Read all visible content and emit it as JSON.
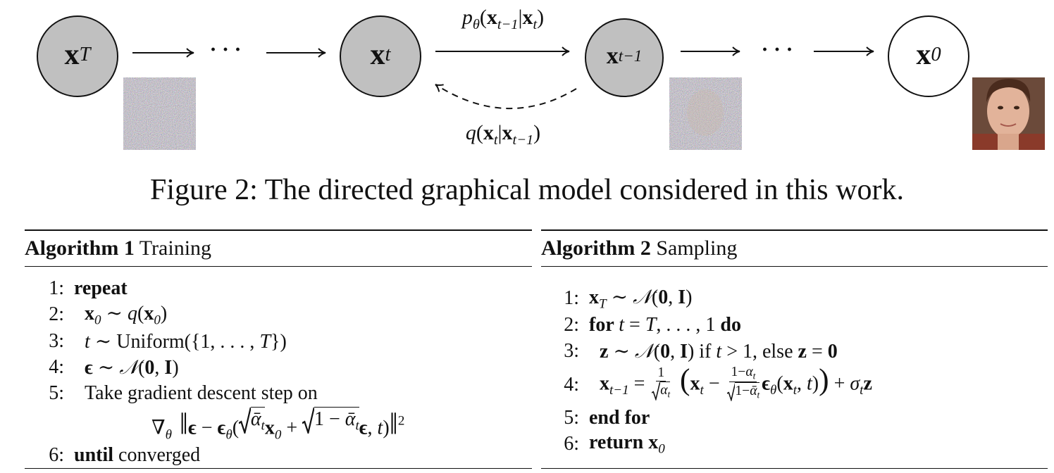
{
  "figure": {
    "nodes": [
      [
        {
          "b": "x"
        },
        {
          "sub": "T"
        }
      ],
      [
        {
          "b": "x"
        },
        {
          "sub": "t"
        }
      ],
      [
        {
          "b": "x"
        },
        {
          "sub": "t−1"
        }
      ],
      [
        {
          "b": "x"
        },
        {
          "sub": "0"
        }
      ]
    ],
    "dots": [
      "· · ·",
      "· · ·"
    ],
    "reverse_label": [
      {
        "i": "p"
      },
      {
        "sub": "θ"
      },
      {
        "r": "("
      },
      {
        "b": "x"
      },
      {
        "sub": "t−1"
      },
      {
        "r": "|"
      },
      {
        "b": "x"
      },
      {
        "sub": "t"
      },
      {
        "r": ")"
      }
    ],
    "forward_label": [
      {
        "i": "q"
      },
      {
        "r": "("
      },
      {
        "b": "x"
      },
      {
        "sub": "t"
      },
      {
        "r": "|"
      },
      {
        "b": "x"
      },
      {
        "sub": "t−1"
      },
      {
        "r": ")"
      }
    ],
    "caption": "Figure 2: The directed graphical model considered in this work."
  },
  "algorithms": [
    {
      "label": "Algorithm 1",
      "name": " Training",
      "lines": [
        {
          "num": "1:",
          "content": [
            {
              "b": "repeat"
            }
          ]
        },
        {
          "num": "2:",
          "content": [
            {
              "b": "x"
            },
            {
              "sub": "0"
            },
            {
              "r": " ∼ "
            },
            {
              "i": "q"
            },
            {
              "r": "("
            },
            {
              "b": "x"
            },
            {
              "sub": "0"
            },
            {
              "r": ")"
            }
          ]
        },
        {
          "num": "3:",
          "content": [
            {
              "i": "t"
            },
            {
              "r": " ∼ Uniform({1, . . . , "
            },
            {
              "i": "T"
            },
            {
              "r": "})"
            }
          ]
        },
        {
          "num": "4:",
          "content": [
            {
              "b": "ϵ"
            },
            {
              "r": " ∼ "
            },
            {
              "cal": "𝒩"
            },
            {
              "r": "("
            },
            {
              "b": "0"
            },
            {
              "r": ", "
            },
            {
              "b": "I"
            },
            {
              "r": ")"
            }
          ]
        },
        {
          "num": "5:",
          "content": [
            {
              "r": "Take gradient descent step on"
            }
          ]
        },
        {
          "content": [
            {
              "r": "∇"
            },
            {
              "sub": "θ"
            },
            {
              "big": " ‖"
            },
            {
              "b": "ϵ"
            },
            {
              "r": " − "
            },
            {
              "b": "ϵ"
            },
            {
              "sub": "θ"
            },
            {
              "r": "("
            },
            {
              "sqrt": [
                {
                  "i": "ᾱ"
                },
                {
                  "sub": "t"
                }
              ]
            },
            {
              "b": "x"
            },
            {
              "sub": "0"
            },
            {
              "r": " + "
            },
            {
              "sqrt": [
                {
                  "r": "1 − "
                },
                {
                  "i": "ᾱ"
                },
                {
                  "sub": "t"
                }
              ]
            },
            {
              "b": "ϵ"
            },
            {
              "r": ", "
            },
            {
              "i": "t"
            },
            {
              "r": ")"
            },
            {
              "big": "‖"
            },
            {
              "sup": "2"
            }
          ]
        },
        {
          "num": "6:",
          "content": [
            {
              "b": "until"
            },
            {
              "r": " converged"
            }
          ]
        }
      ]
    },
    {
      "label": "Algorithm 2",
      "name": " Sampling",
      "lines": [
        {
          "num": "1:",
          "content": [
            {
              "b": "x"
            },
            {
              "sub": "T"
            },
            {
              "r": " ∼ "
            },
            {
              "cal": "𝒩"
            },
            {
              "r": "("
            },
            {
              "b": "0"
            },
            {
              "r": ", "
            },
            {
              "b": "I"
            },
            {
              "r": ")"
            }
          ]
        },
        {
          "num": "2:",
          "content": [
            {
              "b": "for "
            },
            {
              "i": "t"
            },
            {
              "r": " = "
            },
            {
              "i": "T"
            },
            {
              "r": ", . . . , 1 "
            },
            {
              "b": "do"
            }
          ]
        },
        {
          "num": "3:",
          "content": [
            {
              "b": "z"
            },
            {
              "r": " ∼ "
            },
            {
              "cal": "𝒩"
            },
            {
              "r": "("
            },
            {
              "b": "0"
            },
            {
              "r": ", "
            },
            {
              "b": "I"
            },
            {
              "r": ") if "
            },
            {
              "i": "t"
            },
            {
              "r": " > 1, else "
            },
            {
              "b": "z"
            },
            {
              "r": " = "
            },
            {
              "b": "0"
            }
          ]
        },
        {
          "num": "4:",
          "content": [
            {
              "b": "x"
            },
            {
              "sub": "t−1"
            },
            {
              "r": " = "
            },
            {
              "frac": [
                [
                  {
                    "r": "1"
                  }
                ],
                [
                  {
                    "sqrt": [
                      {
                        "i": "α"
                      },
                      {
                        "sub": "t"
                      }
                    ]
                  }
                ]
              ]
            },
            {
              "big": " ("
            },
            {
              "b": "x"
            },
            {
              "sub": "t"
            },
            {
              "r": " − "
            },
            {
              "frac": [
                [
                  {
                    "r": "1−"
                  },
                  {
                    "i": "α"
                  },
                  {
                    "sub": "t"
                  }
                ],
                [
                  {
                    "sqrt": [
                      {
                        "r": "1−"
                      },
                      {
                        "i": "ᾱ"
                      },
                      {
                        "sub": "t"
                      }
                    ]
                  }
                ]
              ]
            },
            {
              "b": "ϵ"
            },
            {
              "sub": "θ"
            },
            {
              "r": "("
            },
            {
              "b": "x"
            },
            {
              "sub": "t"
            },
            {
              "r": ", "
            },
            {
              "i": "t"
            },
            {
              "r": ")"
            },
            {
              "big": ")"
            },
            {
              "r": " + "
            },
            {
              "i": "σ"
            },
            {
              "sub": "t"
            },
            {
              "b": "z"
            }
          ]
        },
        {
          "num": "5:",
          "content": [
            {
              "b": "end for"
            }
          ]
        },
        {
          "num": "6:",
          "content": [
            {
              "b": "return "
            },
            {
              "b": "x"
            },
            {
              "sub": "0"
            }
          ]
        }
      ]
    }
  ]
}
